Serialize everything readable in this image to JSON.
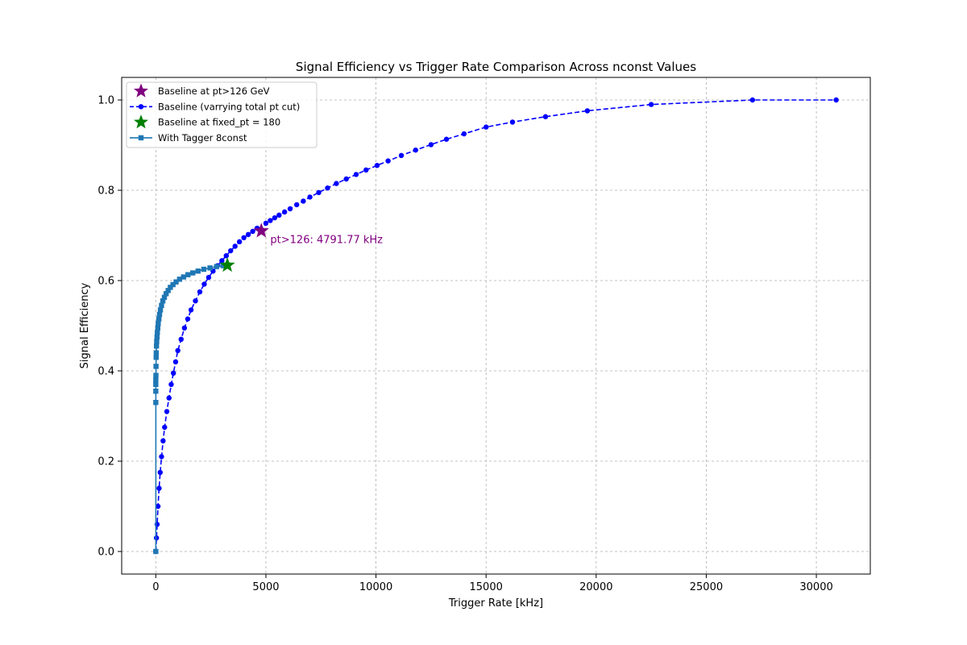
{
  "chart_data": {
    "type": "line",
    "title": "Signal Efficiency vs Trigger Rate Comparison Across nconst Values",
    "xlabel": "Trigger Rate [kHz]",
    "ylabel": "Signal Efficiency",
    "xlim": [
      -1550,
      32450
    ],
    "ylim": [
      -0.05,
      1.05
    ],
    "xticks": [
      0,
      5000,
      10000,
      15000,
      20000,
      25000,
      30000
    ],
    "xtick_labels": [
      "0",
      "5000",
      "10000",
      "15000",
      "20000",
      "25000",
      "30000"
    ],
    "yticks": [
      0.0,
      0.2,
      0.4,
      0.6,
      0.8,
      1.0
    ],
    "ytick_labels": [
      "0.0",
      "0.2",
      "0.4",
      "0.6",
      "0.8",
      "1.0"
    ],
    "grid": true,
    "legend_position": "upper-left",
    "colors": {
      "baseline_curve": "#0000ff",
      "tagger_curve": "#1f77b4",
      "star_pt126": "#800080",
      "star_fixed_pt": "#008000",
      "annotation": "#800080"
    },
    "series": [
      {
        "name": "Baseline at pt>126 GeV",
        "kind": "star-marker",
        "x": [
          4791.77
        ],
        "y": [
          0.71
        ]
      },
      {
        "name": "Baseline (varrying total pt cut)",
        "kind": "dashed-line-circles",
        "x": [
          0,
          30,
          60,
          100,
          150,
          200,
          260,
          330,
          400,
          500,
          600,
          700,
          800,
          900,
          1000,
          1150,
          1300,
          1450,
          1600,
          1800,
          2000,
          2200,
          2400,
          2600,
          2800,
          3000,
          3200,
          3400,
          3600,
          3800,
          4000,
          4200,
          4400,
          4600,
          4791.77,
          5000,
          5200,
          5400,
          5600,
          5850,
          6100,
          6400,
          6700,
          7000,
          7400,
          7800,
          8200,
          8650,
          9100,
          9550,
          10050,
          10550,
          11150,
          11800,
          12500,
          13200,
          14000,
          15000,
          16200,
          17700,
          19600,
          22500,
          27100,
          30900
        ],
        "y": [
          0.0,
          0.03,
          0.06,
          0.1,
          0.14,
          0.175,
          0.21,
          0.245,
          0.275,
          0.31,
          0.34,
          0.37,
          0.395,
          0.42,
          0.445,
          0.47,
          0.495,
          0.515,
          0.535,
          0.555,
          0.575,
          0.592,
          0.607,
          0.621,
          0.633,
          0.644,
          0.655,
          0.666,
          0.676,
          0.686,
          0.695,
          0.702,
          0.709,
          0.716,
          0.71,
          0.727,
          0.733,
          0.739,
          0.745,
          0.752,
          0.759,
          0.768,
          0.776,
          0.785,
          0.795,
          0.805,
          0.815,
          0.825,
          0.835,
          0.845,
          0.855,
          0.865,
          0.877,
          0.889,
          0.901,
          0.913,
          0.925,
          0.94,
          0.951,
          0.963,
          0.976,
          0.99,
          1.0,
          1.0
        ]
      },
      {
        "name": "Baseline at fixed_pt = 180",
        "kind": "star-marker",
        "x": [
          3250
        ],
        "y": [
          0.634
        ]
      },
      {
        "name": "With Tagger 8const",
        "kind": "solid-line-squares",
        "x": [
          0,
          0,
          0,
          0,
          0,
          5,
          10,
          15,
          20,
          30,
          40,
          55,
          70,
          90,
          110,
          140,
          170,
          210,
          260,
          320,
          390,
          470,
          560,
          660,
          780,
          920,
          1080,
          1260,
          1460,
          1680,
          1920,
          2180,
          2460,
          2760,
          3050,
          3250
        ],
        "y": [
          0.0,
          0.33,
          0.355,
          0.37,
          0.38,
          0.39,
          0.41,
          0.43,
          0.44,
          0.455,
          0.465,
          0.475,
          0.485,
          0.495,
          0.505,
          0.515,
          0.525,
          0.535,
          0.545,
          0.555,
          0.563,
          0.571,
          0.578,
          0.585,
          0.591,
          0.597,
          0.603,
          0.608,
          0.613,
          0.617,
          0.621,
          0.625,
          0.628,
          0.631,
          0.633,
          0.634
        ]
      }
    ],
    "annotations": [
      {
        "text": "pt>126: 4791.77 kHz",
        "x": 5200,
        "y": 0.69
      }
    ]
  }
}
